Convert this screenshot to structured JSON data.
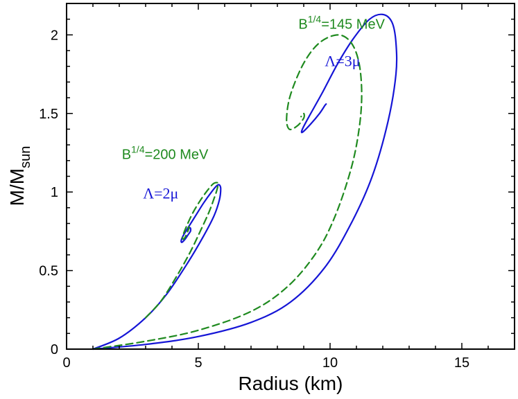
{
  "chart_data": {
    "type": "line",
    "xlabel": "Radius (km)",
    "ylabel_main": "M/M",
    "ylabel_sub": "sun",
    "xlim": [
      0,
      17
    ],
    "ylim": [
      0,
      2.2
    ],
    "xticks": [
      0,
      5,
      10,
      15
    ],
    "xtick_labels": [
      "0",
      "5",
      "10",
      "15"
    ],
    "yticks": [
      0,
      0.5,
      1,
      1.5,
      2
    ],
    "ytick_labels": [
      "0",
      "0.5",
      "1",
      "1.5",
      "2"
    ],
    "grid": false,
    "series": [
      {
        "color": "#1515d6",
        "dash": "solid",
        "x": [
          1.0,
          2.0,
          3.0,
          3.8,
          4.6,
          5.2,
          5.6,
          5.8,
          5.85,
          5.8,
          5.7,
          5.5,
          5.2,
          4.9,
          4.6,
          4.42,
          4.35,
          4.38,
          4.5,
          4.62,
          4.7,
          4.7,
          4.65,
          4.6
        ],
        "y": [
          0.0,
          0.07,
          0.2,
          0.35,
          0.55,
          0.72,
          0.85,
          0.95,
          1.02,
          1.045,
          1.04,
          1.0,
          0.93,
          0.85,
          0.77,
          0.72,
          0.69,
          0.68,
          0.7,
          0.73,
          0.75,
          0.77,
          0.77,
          0.75
        ]
      },
      {
        "color": "#1f8a1f",
        "dash": "dashed",
        "x": [
          3.0,
          3.6,
          4.2,
          4.7,
          5.1,
          5.4,
          5.6,
          5.7,
          5.75,
          5.7,
          5.55,
          5.3,
          5.05,
          4.8,
          4.6,
          4.45,
          4.4,
          4.45,
          4.55,
          4.62,
          4.65,
          4.6
        ],
        "y": [
          0.2,
          0.31,
          0.47,
          0.62,
          0.76,
          0.87,
          0.96,
          1.01,
          1.05,
          1.06,
          1.05,
          1.0,
          0.94,
          0.87,
          0.8,
          0.74,
          0.71,
          0.7,
          0.73,
          0.76,
          0.78,
          0.76
        ]
      },
      {
        "color": "#1515d6",
        "dash": "solid",
        "x": [
          1.0,
          3.0,
          5.0,
          7.0,
          8.5,
          9.8,
          10.8,
          11.6,
          12.2,
          12.5,
          12.5,
          12.35,
          12.0,
          11.5,
          10.9,
          10.3,
          9.7,
          9.2,
          8.95,
          8.95,
          9.25,
          9.6,
          9.8,
          9.85
        ],
        "y": [
          0.0,
          0.03,
          0.08,
          0.17,
          0.3,
          0.52,
          0.8,
          1.1,
          1.45,
          1.75,
          1.95,
          2.08,
          2.13,
          2.1,
          1.98,
          1.82,
          1.63,
          1.48,
          1.4,
          1.38,
          1.43,
          1.5,
          1.55,
          1.56
        ]
      },
      {
        "color": "#1f8a1f",
        "dash": "dashed",
        "x": [
          1.0,
          3.0,
          5.0,
          7.0,
          8.4,
          9.5,
          10.2,
          10.8,
          11.1,
          11.2,
          11.1,
          10.8,
          10.3,
          9.6,
          9.0,
          8.5,
          8.35,
          8.45,
          8.75,
          9.0,
          9.0,
          8.9
        ],
        "y": [
          0.0,
          0.05,
          0.12,
          0.24,
          0.4,
          0.62,
          0.85,
          1.15,
          1.4,
          1.62,
          1.82,
          1.95,
          2.0,
          1.95,
          1.82,
          1.62,
          1.47,
          1.4,
          1.42,
          1.47,
          1.5,
          1.48
        ]
      }
    ],
    "annotations": [
      {
        "base": "B",
        "sup": "1/4",
        "rest": "=145 MeV",
        "color": "#1f8a1f",
        "x": 8.8,
        "y": 2.04,
        "style": "sans"
      },
      {
        "base": "Λ=3μ",
        "sup": "",
        "rest": "",
        "color": "#1515d6",
        "x": 9.8,
        "y": 1.8,
        "style": "serif"
      },
      {
        "base": "B",
        "sup": "1/4",
        "rest": "=200 MeV",
        "color": "#1f8a1f",
        "x": 2.1,
        "y": 1.21,
        "style": "sans"
      },
      {
        "base": "Λ=2μ",
        "sup": "",
        "rest": "",
        "color": "#1515d6",
        "x": 2.9,
        "y": 0.96,
        "style": "serif"
      }
    ]
  }
}
